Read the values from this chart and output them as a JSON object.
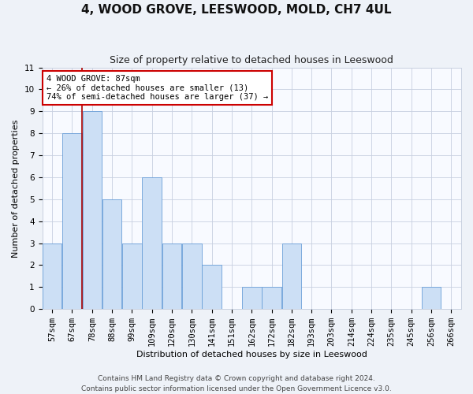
{
  "title": "4, WOOD GROVE, LEESWOOD, MOLD, CH7 4UL",
  "subtitle": "Size of property relative to detached houses in Leeswood",
  "xlabel": "Distribution of detached houses by size in Leeswood",
  "ylabel": "Number of detached properties",
  "categories": [
    "57sqm",
    "67sqm",
    "78sqm",
    "88sqm",
    "99sqm",
    "109sqm",
    "120sqm",
    "130sqm",
    "141sqm",
    "151sqm",
    "162sqm",
    "172sqm",
    "182sqm",
    "193sqm",
    "203sqm",
    "214sqm",
    "224sqm",
    "235sqm",
    "245sqm",
    "256sqm",
    "266sqm"
  ],
  "values": [
    3,
    8,
    9,
    5,
    3,
    6,
    3,
    3,
    2,
    0,
    1,
    1,
    3,
    0,
    0,
    0,
    0,
    0,
    0,
    1,
    0
  ],
  "bar_color": "#ccdff5",
  "bar_edge_color": "#6a9fd8",
  "ylim": [
    0,
    11
  ],
  "yticks": [
    0,
    1,
    2,
    3,
    4,
    5,
    6,
    7,
    8,
    9,
    10,
    11
  ],
  "property_line_bin": 2,
  "property_line_color": "#aa0000",
  "annotation_text": "4 WOOD GROVE: 87sqm\n← 26% of detached houses are smaller (13)\n74% of semi-detached houses are larger (37) →",
  "annotation_box_facecolor": "#ffffff",
  "annotation_box_edgecolor": "#cc0000",
  "footer_line1": "Contains HM Land Registry data © Crown copyright and database right 2024.",
  "footer_line2": "Contains public sector information licensed under the Open Government Licence v3.0.",
  "background_color": "#eef2f8",
  "plot_bg_color": "#f8faff",
  "grid_color": "#c8d0e0",
  "title_fontsize": 11,
  "subtitle_fontsize": 9,
  "ylabel_fontsize": 8,
  "xlabel_fontsize": 8,
  "tick_fontsize": 7.5,
  "annot_fontsize": 7.5,
  "footer_fontsize": 6.5
}
